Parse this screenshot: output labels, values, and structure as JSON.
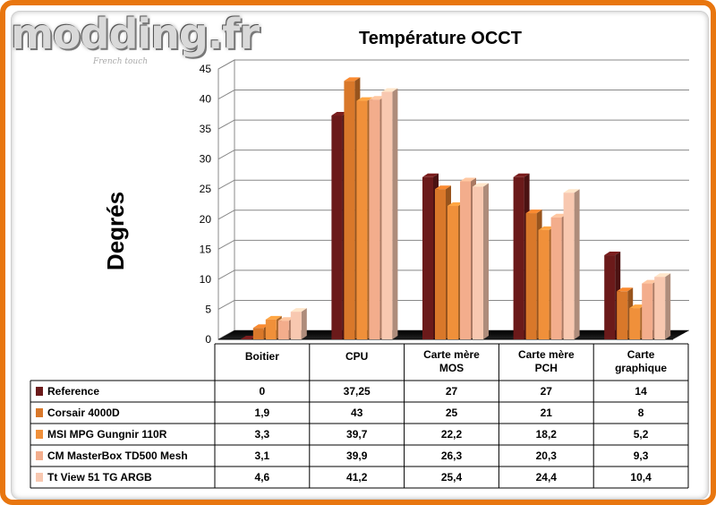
{
  "logo": {
    "text": "modding.fr",
    "tagline": "French touch"
  },
  "chart_data": {
    "type": "bar",
    "title": "Température OCCT",
    "ylabel": "Degrés",
    "xlabel": "",
    "ylim": [
      0,
      45
    ],
    "yticks": [
      0,
      5,
      10,
      15,
      20,
      25,
      30,
      35,
      40,
      45
    ],
    "grid": true,
    "legend_placement": "table-below",
    "categories": [
      [
        "Boitier"
      ],
      [
        "CPU"
      ],
      [
        "Carte mère",
        "MOS"
      ],
      [
        "Carte mère",
        "PCH"
      ],
      [
        "Carte",
        "graphique"
      ]
    ],
    "series": [
      {
        "name": "Reference",
        "color": "#6b1a1a",
        "values": [
          0,
          37.25,
          27,
          27,
          14
        ],
        "labels": [
          "0",
          "37,25",
          "27",
          "27",
          "14"
        ]
      },
      {
        "name": "Corsair 4000D",
        "color": "#d9782a",
        "values": [
          1.9,
          43,
          25,
          21,
          8
        ],
        "labels": [
          "1,9",
          "43",
          "25",
          "21",
          "8"
        ]
      },
      {
        "name": "MSI MPG Gungnir 110R",
        "color": "#f0903a",
        "values": [
          3.3,
          39.7,
          22.2,
          18.2,
          5.2
        ],
        "labels": [
          "3,3",
          "39,7",
          "22,2",
          "18,2",
          "5,2"
        ]
      },
      {
        "name": "CM MasterBox TD500 Mesh",
        "color": "#f3ad8c",
        "values": [
          3.1,
          39.9,
          26.3,
          20.3,
          9.3
        ],
        "labels": [
          "3,1",
          "39,9",
          "26,3",
          "20,3",
          "9,3"
        ]
      },
      {
        "name": "Tt View 51 TG ARGB",
        "color": "#f8c8b0",
        "values": [
          4.6,
          41.2,
          25.4,
          24.4,
          10.4
        ],
        "labels": [
          "4,6",
          "41,2",
          "25,4",
          "24,4",
          "10,4"
        ]
      }
    ]
  }
}
